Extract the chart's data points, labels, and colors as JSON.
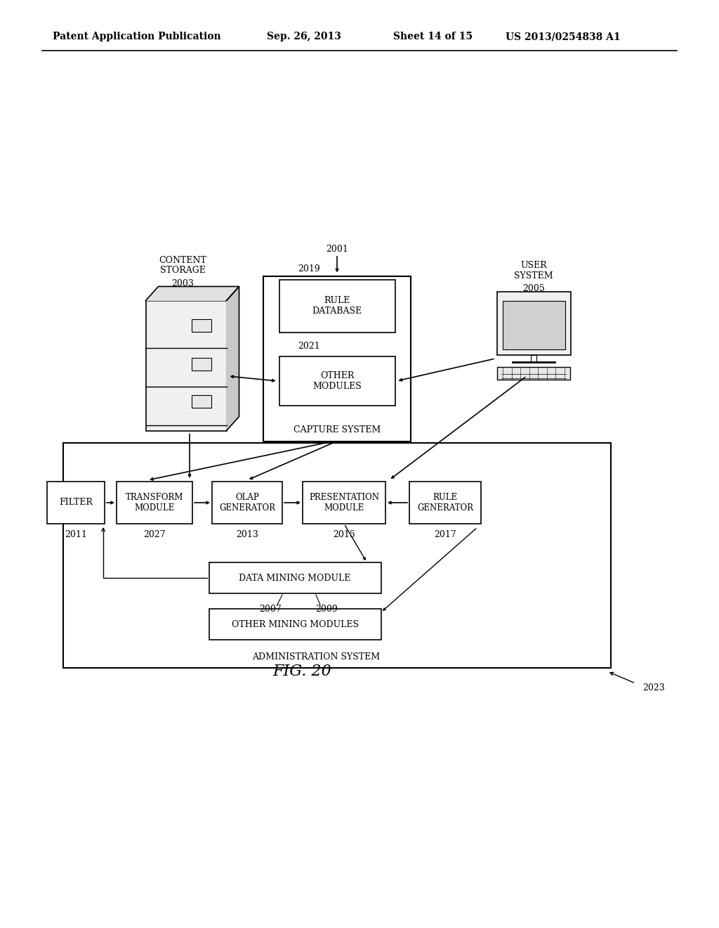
{
  "bg_color": "#ffffff",
  "header_left": "Patent Application Publication",
  "header_mid": "Sep. 26, 2013  Sheet 14 of 15",
  "header_right": "US 2013/0254838 A1",
  "fig_label": "FIG. 20"
}
